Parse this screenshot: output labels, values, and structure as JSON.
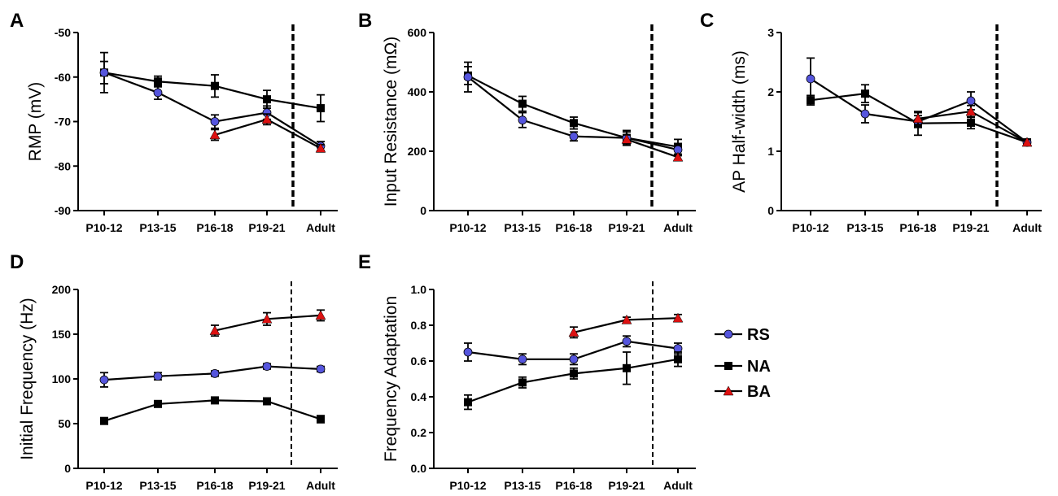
{
  "colors": {
    "RS": "#5555dd",
    "NA": "#000000",
    "BA": "#dd1111"
  },
  "legend": [
    {
      "key": "RS",
      "label": "RS",
      "marker": "circle"
    },
    {
      "key": "NA",
      "label": "NA",
      "marker": "square"
    },
    {
      "key": "BA",
      "label": "BA",
      "marker": "triangle"
    }
  ],
  "chart_data": [
    {
      "panel": "A",
      "type": "line",
      "ylabel": "RMP (mV)",
      "ylim": [
        -90,
        -50
      ],
      "yticks": [
        -90,
        -80,
        -70,
        -60,
        -50
      ],
      "categories": [
        "P10-12",
        "P13-15",
        "P16-18",
        "P19-21",
        "Adult"
      ],
      "divider_after": "P19-21",
      "divider_style": "thick",
      "series": [
        {
          "name": "NA",
          "values": [
            -59,
            -61,
            -62,
            -65,
            -67
          ],
          "err": [
            4.5,
            1.2,
            2.5,
            2,
            3
          ]
        },
        {
          "name": "RS",
          "values": [
            -59,
            -63.5,
            -70,
            -68,
            -75.5
          ],
          "err": [
            2.5,
            1.5,
            1.5,
            1.5,
            1
          ]
        },
        {
          "name": "BA",
          "values": [
            null,
            null,
            -73,
            -69.5,
            -76
          ],
          "err": [
            null,
            null,
            1.2,
            1.2,
            0.8
          ]
        }
      ]
    },
    {
      "panel": "B",
      "type": "line",
      "ylabel": "Input Resistance (mΩ)",
      "ylim": [
        0,
        600
      ],
      "yticks": [
        0,
        200,
        400,
        600
      ],
      "categories": [
        "P10-12",
        "P13-15",
        "P16-18",
        "P19-21",
        "Adult"
      ],
      "divider_after": "P19-21",
      "divider_style": "thick",
      "series": [
        {
          "name": "NA",
          "values": [
            455,
            360,
            295,
            245,
            215
          ],
          "err": [
            30,
            25,
            20,
            25,
            25
          ]
        },
        {
          "name": "RS",
          "values": [
            450,
            305,
            250,
            245,
            205
          ],
          "err": [
            50,
            25,
            15,
            20,
            20
          ]
        },
        {
          "name": "BA",
          "values": [
            null,
            null,
            null,
            240,
            180
          ],
          "err": [
            null,
            null,
            null,
            15,
            10
          ]
        }
      ]
    },
    {
      "panel": "C",
      "type": "line",
      "ylabel": "AP Half-width (ms)",
      "ylim": [
        0,
        3
      ],
      "yticks": [
        0,
        1,
        2,
        3
      ],
      "categories": [
        "P10-12",
        "P13-15",
        "P16-18",
        "P19-21",
        "Adult"
      ],
      "divider_after": "P19-21",
      "divider_style": "thick",
      "series": [
        {
          "name": "NA",
          "values": [
            1.86,
            1.97,
            1.47,
            1.48,
            1.15
          ],
          "err": [
            0.08,
            0.15,
            0.2,
            0.1,
            0.05
          ]
        },
        {
          "name": "RS",
          "values": [
            2.22,
            1.63,
            1.5,
            1.85,
            1.15
          ],
          "err": [
            0.35,
            0.15,
            0.1,
            0.15,
            0.05
          ]
        },
        {
          "name": "BA",
          "values": [
            null,
            null,
            1.55,
            1.67,
            1.15
          ],
          "err": [
            null,
            null,
            0.1,
            0.1,
            0.05
          ]
        }
      ]
    },
    {
      "panel": "D",
      "type": "line",
      "ylabel": "Initial Frequency (Hz)",
      "ylim": [
        0,
        200
      ],
      "yticks": [
        0,
        50,
        100,
        150,
        200
      ],
      "categories": [
        "P10-12",
        "P13-15",
        "P16-18",
        "P19-21",
        "Adult"
      ],
      "divider_after": "P19-21",
      "divider_style": "thin",
      "series": [
        {
          "name": "RS",
          "values": [
            99,
            103,
            106,
            114,
            111
          ],
          "err": [
            8,
            4,
            3,
            3,
            3
          ]
        },
        {
          "name": "NA",
          "values": [
            53,
            72,
            76,
            75,
            55
          ],
          "err": [
            3,
            3,
            3,
            3,
            4
          ]
        },
        {
          "name": "BA",
          "values": [
            null,
            null,
            154,
            167,
            171
          ],
          "err": [
            null,
            null,
            6,
            7,
            6
          ]
        }
      ]
    },
    {
      "panel": "E",
      "type": "line",
      "ylabel": "Frequency Adaptation",
      "ylim": [
        0,
        1.0
      ],
      "yticks": [
        0.0,
        0.2,
        0.4,
        0.6,
        0.8,
        1.0
      ],
      "yticklabels": [
        "0.0",
        "0.2",
        "0.4",
        "0.6",
        "0.8",
        "1.0"
      ],
      "categories": [
        "P10-12",
        "P13-15",
        "P16-18",
        "P19-21",
        "Adult"
      ],
      "divider_after": "P19-21",
      "divider_style": "thin",
      "series": [
        {
          "name": "RS",
          "values": [
            0.65,
            0.61,
            0.61,
            0.71,
            0.67
          ],
          "err": [
            0.05,
            0.03,
            0.03,
            0.03,
            0.03
          ]
        },
        {
          "name": "NA",
          "values": [
            0.37,
            0.48,
            0.53,
            0.56,
            0.61
          ],
          "err": [
            0.04,
            0.03,
            0.03,
            0.09,
            0.04
          ]
        },
        {
          "name": "BA",
          "values": [
            null,
            null,
            0.76,
            0.83,
            0.84
          ],
          "err": [
            null,
            null,
            0.03,
            0.015,
            0.02
          ]
        }
      ]
    }
  ]
}
